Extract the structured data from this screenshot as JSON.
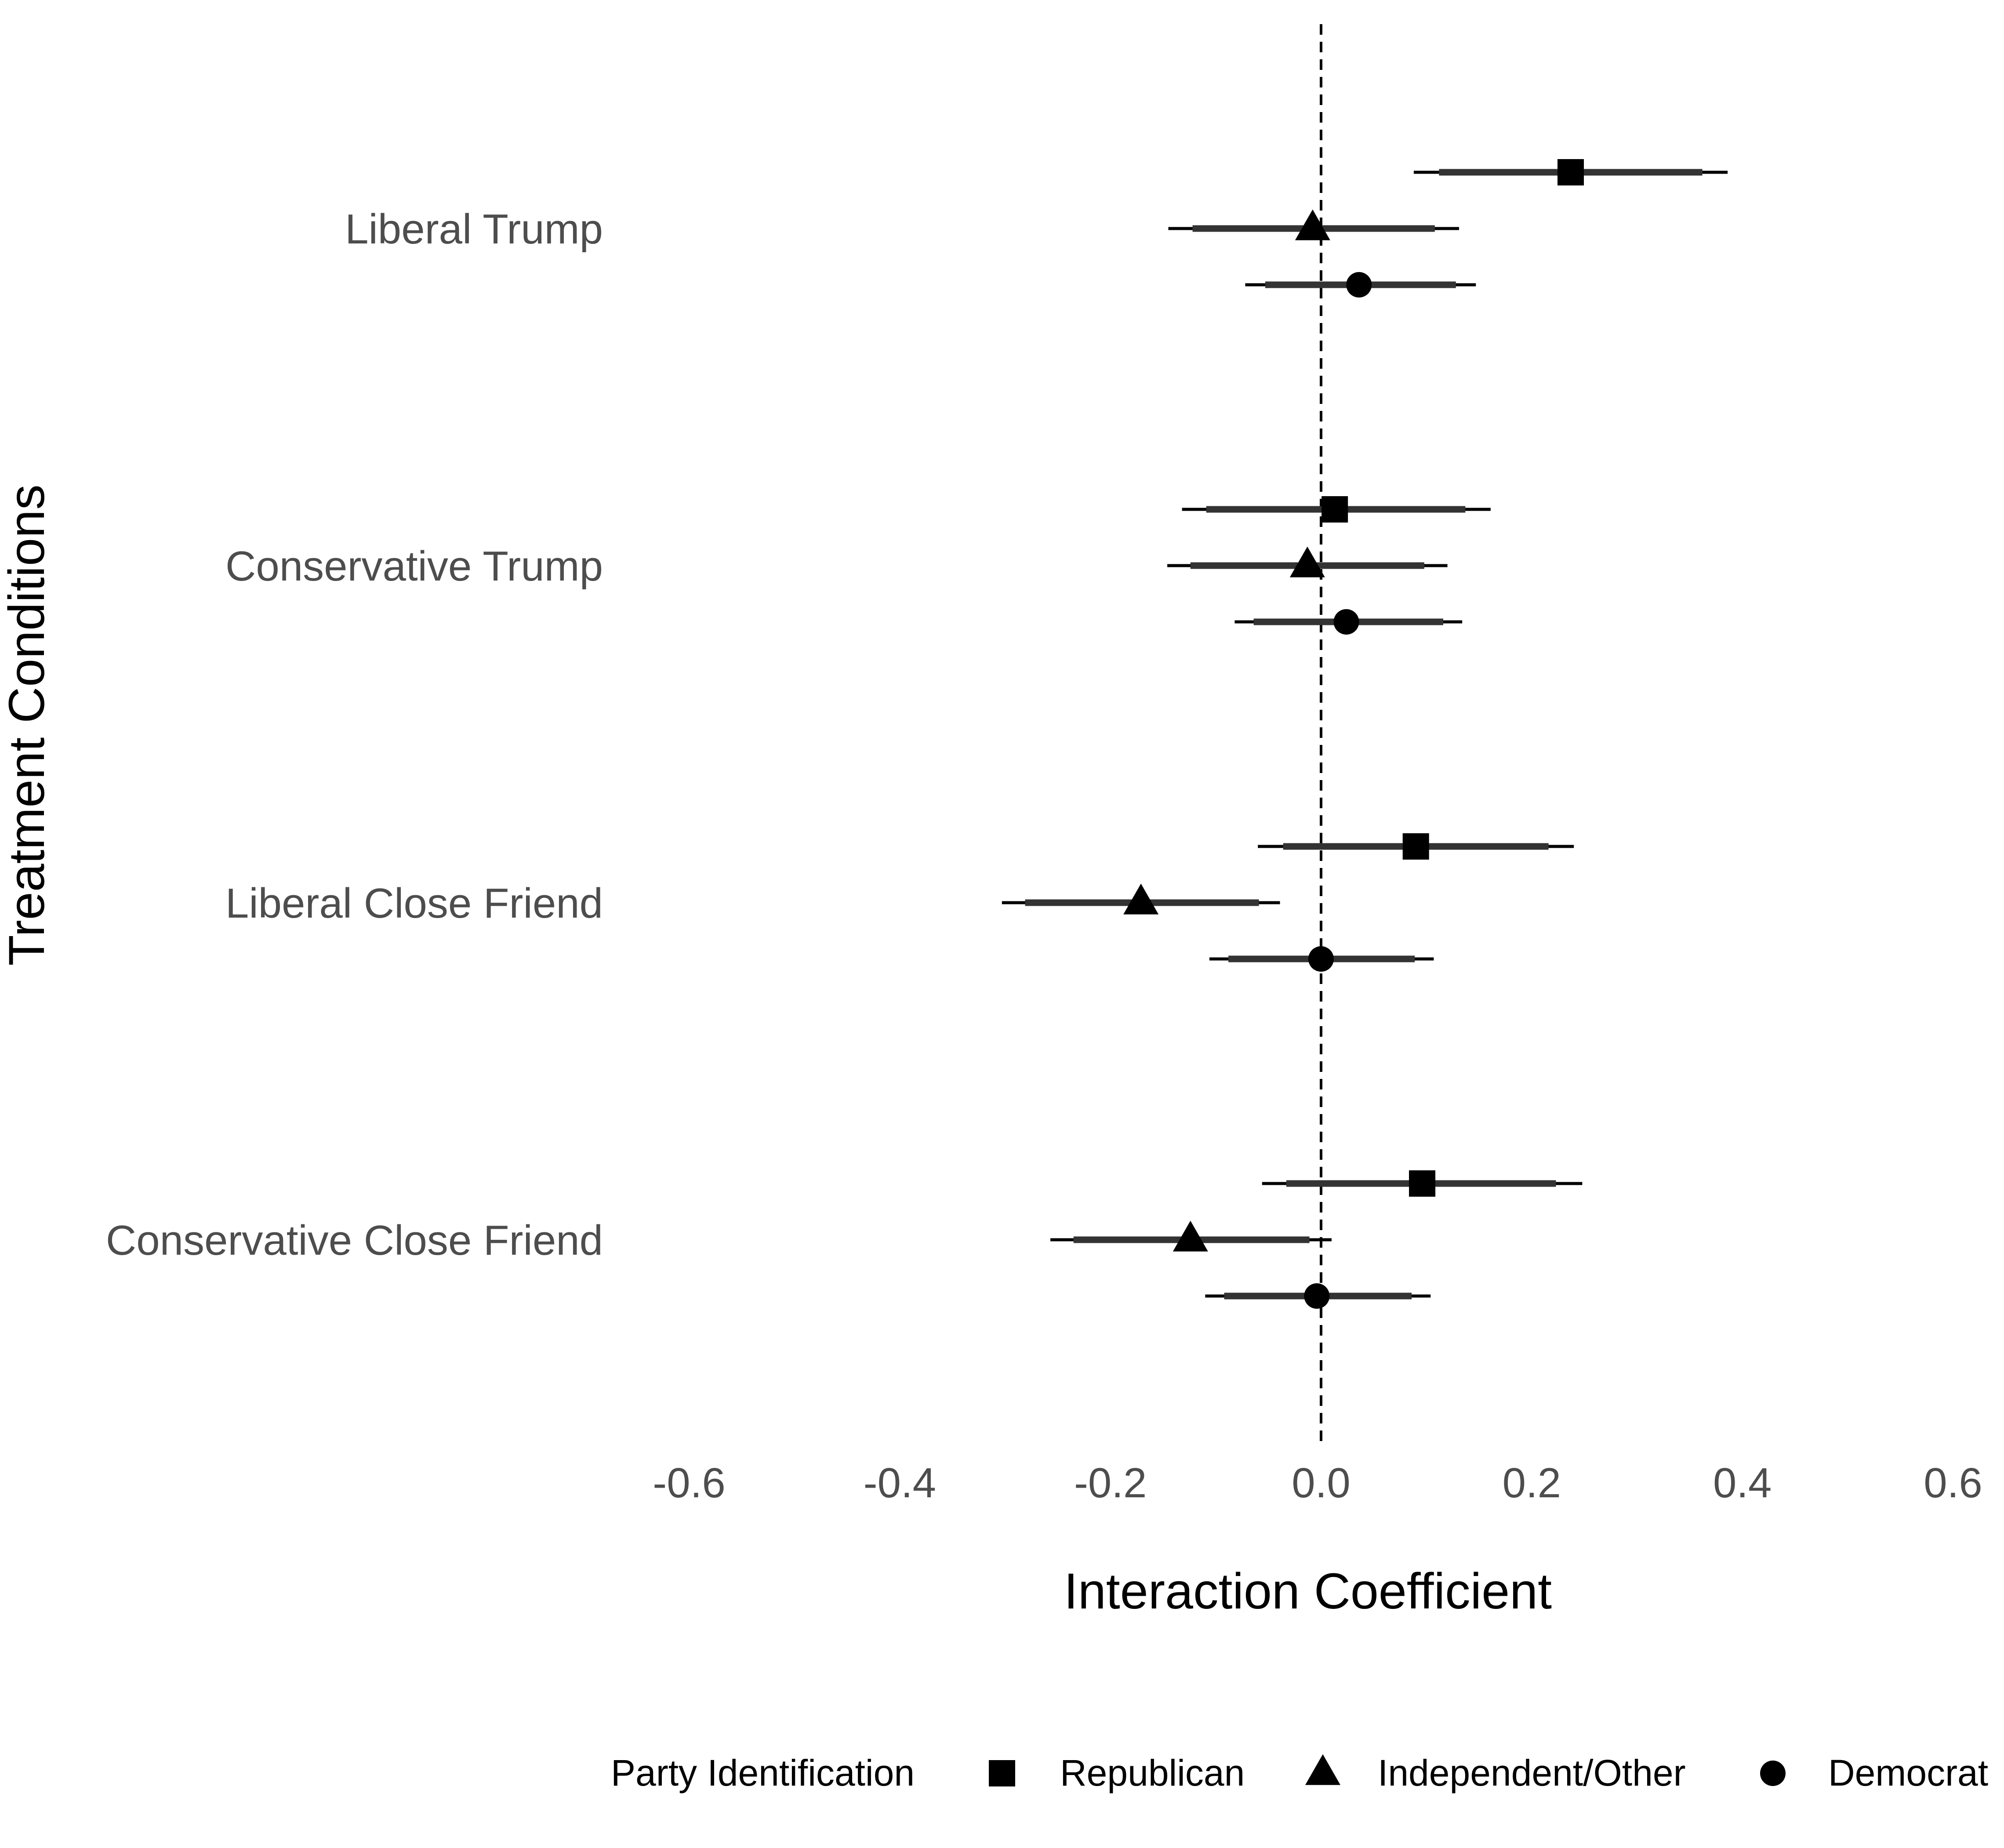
{
  "chart_data": {
    "type": "scatter",
    "subtype": "coefficient-plot",
    "title": "",
    "xlabel": "Interaction Coefficient",
    "ylabel": "Treatment Conditions",
    "xlim": [
      -0.6,
      0.6
    ],
    "x_ticks": [
      "-0.6",
      "-0.4",
      "-0.2",
      "0.0",
      "0.2",
      "0.4",
      "0.6"
    ],
    "reference_line": 0,
    "grid": false,
    "categories": [
      "Liberal Trump",
      "Conservative Trump",
      "Liberal Close Friend",
      "Conservative Close Friend"
    ],
    "legend": {
      "title": "Party Identification",
      "position": "bottom"
    },
    "series": [
      {
        "name": "Republican",
        "marker": "square",
        "points": [
          {
            "category": "Liberal Trump",
            "estimate": 0.237,
            "ci90": [
              0.112,
              0.362
            ],
            "ci95": [
              0.088,
              0.386
            ]
          },
          {
            "category": "Conservative Trump",
            "estimate": 0.013,
            "ci90": [
              -0.109,
              0.137
            ],
            "ci95": [
              -0.132,
              0.161
            ]
          },
          {
            "category": "Liberal Close Friend",
            "estimate": 0.09,
            "ci90": [
              -0.036,
              0.216
            ],
            "ci95": [
              -0.06,
              0.24
            ]
          },
          {
            "category": "Conservative Close Friend",
            "estimate": 0.096,
            "ci90": [
              -0.033,
              0.223
            ],
            "ci95": [
              -0.056,
              0.248
            ]
          }
        ]
      },
      {
        "name": "Independent/Other",
        "marker": "triangle",
        "points": [
          {
            "category": "Liberal Trump",
            "estimate": -0.008,
            "ci90": [
              -0.122,
              0.108
            ],
            "ci95": [
              -0.145,
              0.131
            ]
          },
          {
            "category": "Conservative Trump",
            "estimate": -0.013,
            "ci90": [
              -0.124,
              0.098
            ],
            "ci95": [
              -0.146,
              0.12
            ]
          },
          {
            "category": "Liberal Close Friend",
            "estimate": -0.171,
            "ci90": [
              -0.281,
              -0.059
            ],
            "ci95": [
              -0.303,
              -0.039
            ]
          },
          {
            "category": "Conservative Close Friend",
            "estimate": -0.124,
            "ci90": [
              -0.235,
              -0.011
            ],
            "ci95": [
              -0.257,
              0.01
            ]
          }
        ]
      },
      {
        "name": "Democrat",
        "marker": "circle",
        "points": [
          {
            "category": "Liberal Trump",
            "estimate": 0.036,
            "ci90": [
              -0.053,
              0.128
            ],
            "ci95": [
              -0.072,
              0.147
            ]
          },
          {
            "category": "Conservative Trump",
            "estimate": 0.024,
            "ci90": [
              -0.064,
              0.116
            ],
            "ci95": [
              -0.082,
              0.134
            ]
          },
          {
            "category": "Liberal Close Friend",
            "estimate": 0.0,
            "ci90": [
              -0.088,
              0.089
            ],
            "ci95": [
              -0.106,
              0.107
            ]
          },
          {
            "category": "Conservative Close Friend",
            "estimate": -0.004,
            "ci90": [
              -0.092,
              0.086
            ],
            "ci95": [
              -0.11,
              0.104
            ]
          }
        ]
      }
    ]
  }
}
